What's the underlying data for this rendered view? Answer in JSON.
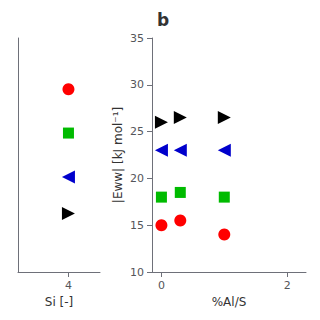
{
  "chart_data": [
    {
      "type": "scatter",
      "xlabel": "Si [-]",
      "xlim": [
        3.2,
        4.5
      ],
      "xticks": [
        4
      ],
      "ylim": [
        1.0,
        4.2
      ],
      "tick_labels": "x",
      "grid": false,
      "series": [
        {
          "color": "#ff0000",
          "marker": "circle",
          "x": [
            4
          ],
          "values": [
            3.5
          ]
        },
        {
          "color": "#00bb00",
          "marker": "square",
          "x": [
            4
          ],
          "values": [
            2.9
          ]
        },
        {
          "color": "#0000cc",
          "marker": "triangle-left",
          "x": [
            4
          ],
          "values": [
            2.3
          ]
        },
        {
          "color": "#000000",
          "marker": "triangle-right",
          "x": [
            4
          ],
          "values": [
            1.8
          ]
        }
      ]
    },
    {
      "type": "scatter",
      "title": "b",
      "xlabel": "%Al/S",
      "ylabel": "|Eww| [kJ mol⁻¹]",
      "xlim": [
        -0.15,
        2.3
      ],
      "xticks": [
        0,
        2
      ],
      "ylim": [
        10,
        35
      ],
      "yticks": [
        10,
        15,
        20,
        25,
        30,
        35
      ],
      "grid": false,
      "series": [
        {
          "color": "#ff0000",
          "marker": "circle",
          "x": [
            0,
            0.3,
            1.0
          ],
          "values": [
            15,
            15.5,
            14
          ]
        },
        {
          "color": "#00bb00",
          "marker": "square",
          "x": [
            0,
            0.3,
            1.0
          ],
          "values": [
            18,
            18.5,
            18
          ]
        },
        {
          "color": "#0000cc",
          "marker": "triangle-left",
          "x": [
            0,
            0.3,
            1.0
          ],
          "values": [
            23,
            23,
            23
          ]
        },
        {
          "color": "#000000",
          "marker": "triangle-right",
          "x": [
            0,
            0.3,
            1.0
          ],
          "values": [
            26,
            26.5,
            26.5
          ]
        }
      ]
    }
  ]
}
